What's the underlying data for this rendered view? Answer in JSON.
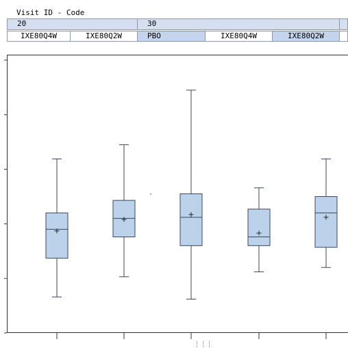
{
  "header": {
    "title": "Visit ID - Code",
    "visits": [
      "20",
      "30"
    ],
    "codes": [
      "IXE80Q4W",
      "IXE80Q2W",
      "PBO",
      "IXE80Q4W",
      "IXE80Q2W"
    ]
  },
  "colors": {
    "box_fill": "#bcd1ea",
    "box_stroke": "#3a4660",
    "axis": "#333333",
    "header_fill": "#d6dff0",
    "header_border": "#8c97b0"
  },
  "chart_data": {
    "type": "box",
    "title": "",
    "xlabel": "",
    "ylabel": "",
    "y_tick_labels_visible": false,
    "grid": false,
    "ylim": [
      0,
      5.1
    ],
    "yticks": [
      0,
      1,
      2,
      3,
      4,
      5
    ],
    "categories": [
      "20 IXE80Q4W",
      "20 IXE80Q2W",
      "30 PBO",
      "30 IXE80Q4W",
      "30 IXE80Q2W"
    ],
    "boxes": [
      {
        "min": 0.66,
        "q1": 1.37,
        "median": 1.9,
        "q3": 2.2,
        "max": 3.19,
        "mean": 1.87
      },
      {
        "min": 1.03,
        "q1": 1.76,
        "median": 2.1,
        "q3": 2.43,
        "max": 3.45,
        "mean": 2.08
      },
      {
        "min": 0.62,
        "q1": 1.6,
        "median": 2.12,
        "q3": 2.55,
        "max": 4.45,
        "mean": 2.17
      },
      {
        "min": 1.12,
        "q1": 1.6,
        "median": 1.76,
        "q3": 2.27,
        "max": 2.66,
        "mean": 1.83
      },
      {
        "min": 1.2,
        "q1": 1.57,
        "median": 2.2,
        "q3": 2.5,
        "max": 3.19,
        "mean": 2.12
      }
    ]
  }
}
